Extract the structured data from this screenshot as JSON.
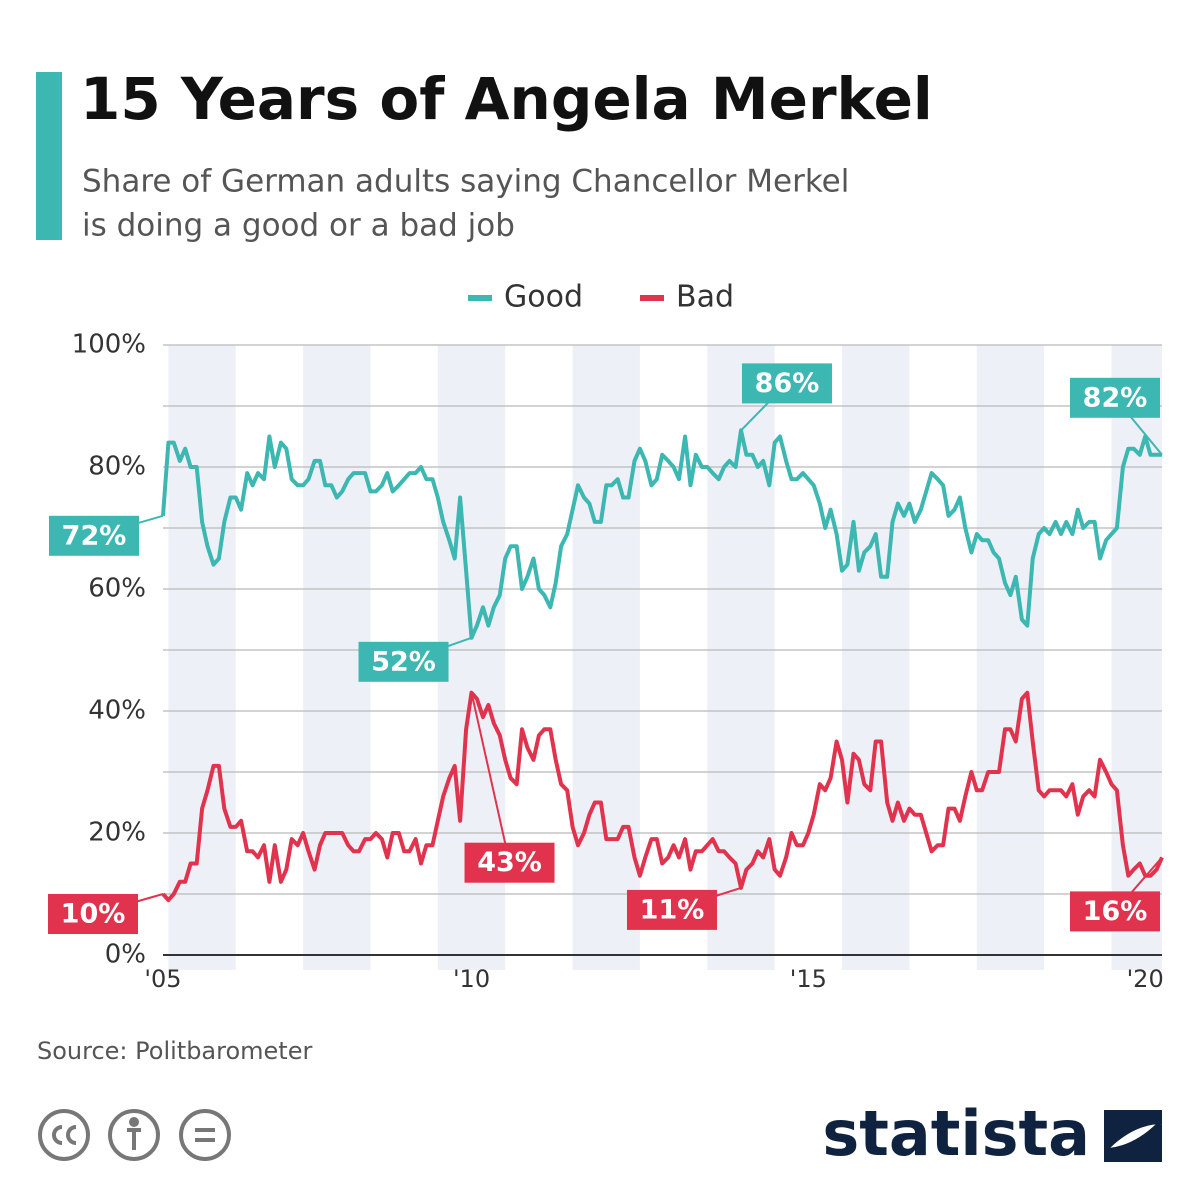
{
  "chart_data": {
    "type": "line",
    "title": "15 Years of Angela Merkel",
    "subtitle": [
      "Share of German adults saying Chancellor Merkel",
      "is doing a good or a bad job"
    ],
    "source": "Source: Politbarometer",
    "brand": "statista",
    "x": [
      2005.92,
      2006,
      2006.08,
      2006.17,
      2006.25,
      2006.33,
      2006.42,
      2006.5,
      2006.58,
      2006.67,
      2006.75,
      2006.83,
      2006.92,
      2007,
      2007.08,
      2007.17,
      2007.25,
      2007.33,
      2007.42,
      2007.5,
      2007.58,
      2007.67,
      2007.75,
      2007.83,
      2007.92,
      2008,
      2008.08,
      2008.17,
      2008.25,
      2008.33,
      2008.42,
      2008.5,
      2008.58,
      2008.67,
      2008.75,
      2008.83,
      2008.92,
      2009,
      2009.08,
      2009.17,
      2009.25,
      2009.33,
      2009.42,
      2009.5,
      2009.58,
      2009.67,
      2009.75,
      2009.83,
      2009.92,
      2010,
      2010.08,
      2010.17,
      2010.25,
      2010.33,
      2010.42,
      2010.5,
      2010.58,
      2010.67,
      2010.75,
      2010.83,
      2010.92,
      2011,
      2011.08,
      2011.17,
      2011.25,
      2011.33,
      2011.42,
      2011.5,
      2011.58,
      2011.67,
      2011.75,
      2011.83,
      2011.92,
      2012,
      2012.08,
      2012.17,
      2012.25,
      2012.33,
      2012.42,
      2012.5,
      2012.58,
      2012.67,
      2012.75,
      2012.83,
      2012.92,
      2013,
      2013.08,
      2013.17,
      2013.25,
      2013.33,
      2013.42,
      2013.5,
      2013.58,
      2013.67,
      2013.75,
      2013.83,
      2013.92,
      2014,
      2014.08,
      2014.17,
      2014.25,
      2014.33,
      2014.42,
      2014.5,
      2014.58,
      2014.67,
      2014.75,
      2014.83,
      2014.92,
      2015,
      2015.08,
      2015.17,
      2015.25,
      2015.33,
      2015.42,
      2015.5,
      2015.58,
      2015.67,
      2015.75,
      2015.83,
      2015.92,
      2016,
      2016.08,
      2016.17,
      2016.25,
      2016.33,
      2016.42,
      2016.5,
      2016.58,
      2016.67,
      2016.75,
      2016.83,
      2016.92,
      2017,
      2017.08,
      2017.17,
      2017.25,
      2017.33,
      2017.42,
      2017.5,
      2017.58,
      2017.67,
      2017.75,
      2017.83,
      2017.92,
      2018,
      2018.08,
      2018.17,
      2018.25,
      2018.33,
      2018.42,
      2018.5,
      2018.58,
      2018.67,
      2018.75,
      2018.83,
      2018.92,
      2019,
      2019.08,
      2019.17,
      2019.25,
      2019.33,
      2019.42,
      2019.5,
      2019.58,
      2019.67,
      2019.75,
      2019.83,
      2019.92,
      2020,
      2020.08,
      2020.17,
      2020.25,
      2020.33,
      2020.42,
      2020.5,
      2020.58,
      2020.67,
      2020.75
    ],
    "series": [
      {
        "name": "Good",
        "color": "#3cb7b1",
        "values": [
          72,
          84,
          84,
          81,
          83,
          80,
          80,
          71,
          67,
          64,
          65,
          71,
          75,
          75,
          73,
          79,
          77,
          79,
          78,
          85,
          80,
          84,
          83,
          78,
          77,
          77,
          78,
          81,
          81,
          77,
          77,
          75,
          76,
          78,
          79,
          79,
          79,
          76,
          76,
          77,
          79,
          76,
          77,
          78,
          79,
          79,
          80,
          78,
          78,
          75,
          71,
          68,
          65,
          75,
          63,
          52,
          54,
          57,
          54,
          57,
          59,
          65,
          67,
          67,
          60,
          62,
          65,
          60,
          59,
          57,
          61,
          67,
          69,
          73,
          77,
          75,
          74,
          71,
          71,
          77,
          77,
          78,
          75,
          75,
          81,
          83,
          81,
          77,
          78,
          82,
          81,
          80,
          78,
          85,
          77,
          82,
          80,
          80,
          79,
          78,
          80,
          81,
          80,
          86,
          82,
          82,
          80,
          81,
          77,
          84,
          85,
          81,
          78,
          78,
          79,
          78,
          77,
          74,
          70,
          73,
          69,
          63,
          64,
          71,
          63,
          66,
          67,
          69,
          62,
          62,
          71,
          74,
          72,
          74,
          71,
          73,
          76,
          79,
          78,
          77,
          72,
          73,
          75,
          70,
          66,
          69,
          68,
          68,
          66,
          65,
          61,
          59,
          62,
          55,
          54,
          65,
          69,
          70,
          69,
          71,
          69,
          71,
          69,
          73,
          70,
          71,
          71,
          65,
          68,
          69,
          70,
          80,
          83,
          83,
          82,
          85,
          82,
          82,
          82
        ],
        "value_labels": [
          "72%",
          null,
          null,
          null,
          null,
          null,
          null,
          null,
          null,
          null,
          null,
          null,
          null,
          null,
          null,
          null,
          null,
          null,
          null,
          null,
          null,
          null,
          null,
          null,
          null,
          null,
          null,
          null,
          null,
          null,
          null,
          null,
          null,
          null,
          null,
          null,
          null,
          null,
          null,
          null,
          null,
          null,
          null,
          null,
          null,
          null,
          null,
          null,
          null,
          null,
          null,
          null,
          null,
          null,
          null,
          "52%",
          null,
          null,
          null,
          null,
          null,
          null,
          null,
          null,
          null,
          null,
          null,
          null,
          null,
          null,
          null,
          null,
          null,
          null,
          null,
          null,
          null,
          null,
          null,
          null,
          null,
          null,
          null,
          null,
          null,
          null,
          null,
          null,
          null,
          null,
          null,
          null,
          null,
          null,
          null,
          null,
          null,
          null,
          null,
          null,
          null,
          null,
          null,
          "86%",
          null,
          null,
          null,
          null,
          null,
          null,
          null,
          null,
          null,
          null,
          null,
          null,
          null,
          null,
          null,
          null,
          null,
          null,
          null,
          null,
          null,
          null,
          null,
          null,
          null,
          null,
          null,
          null,
          null,
          null,
          null,
          null,
          null,
          null,
          null,
          null,
          null,
          null,
          null,
          null,
          null,
          null,
          null,
          null,
          null,
          null,
          null,
          null,
          null,
          null,
          null,
          null,
          null,
          null,
          null,
          null,
          null,
          null,
          null,
          null,
          null,
          null,
          null,
          null,
          null,
          null,
          null,
          null,
          null,
          null,
          null,
          null,
          null,
          null,
          "82%"
        ]
      },
      {
        "name": "Bad",
        "color": "#e1334d",
        "values": [
          10,
          9,
          10,
          12,
          12,
          15,
          15,
          24,
          27,
          31,
          31,
          24,
          21,
          21,
          22,
          17,
          17,
          16,
          18,
          12,
          18,
          12,
          14,
          19,
          18,
          20,
          17,
          14,
          18,
          20,
          20,
          20,
          20,
          18,
          17,
          17,
          19,
          19,
          20,
          19,
          16,
          20,
          20,
          17,
          17,
          19,
          15,
          18,
          18,
          22,
          26,
          29,
          31,
          22,
          37,
          43,
          42,
          39,
          41,
          38,
          36,
          32,
          29,
          28,
          37,
          34,
          32,
          36,
          37,
          37,
          32,
          28,
          27,
          21,
          18,
          20,
          23,
          25,
          25,
          19,
          19,
          19,
          21,
          21,
          16,
          13,
          16,
          19,
          19,
          15,
          16,
          18,
          16,
          19,
          14,
          17,
          17,
          18,
          19,
          17,
          17,
          16,
          15,
          11,
          14,
          15,
          17,
          16,
          19,
          14,
          13,
          16,
          20,
          18,
          18,
          20,
          23,
          28,
          27,
          29,
          35,
          32,
          25,
          33,
          32,
          28,
          27,
          35,
          35,
          25,
          22,
          25,
          22,
          24,
          23,
          23,
          20,
          17,
          18,
          18,
          24,
          24,
          22,
          26,
          30,
          27,
          27,
          30,
          30,
          30,
          37,
          37,
          35,
          42,
          43,
          35,
          27,
          26,
          27,
          27,
          27,
          26,
          28,
          23,
          26,
          27,
          26,
          32,
          30,
          28,
          27,
          18,
          13,
          14,
          15,
          13,
          13,
          14,
          16
        ],
        "value_labels": [
          "10%",
          null,
          null,
          null,
          null,
          null,
          null,
          null,
          null,
          null,
          null,
          null,
          null,
          null,
          null,
          null,
          null,
          null,
          null,
          null,
          null,
          null,
          null,
          null,
          null,
          null,
          null,
          null,
          null,
          null,
          null,
          null,
          null,
          null,
          null,
          null,
          null,
          null,
          null,
          null,
          null,
          null,
          null,
          null,
          null,
          null,
          null,
          null,
          null,
          null,
          null,
          null,
          null,
          null,
          null,
          "43%",
          null,
          null,
          null,
          null,
          null,
          null,
          null,
          null,
          null,
          null,
          null,
          null,
          null,
          null,
          null,
          null,
          null,
          null,
          null,
          null,
          null,
          null,
          null,
          null,
          null,
          null,
          null,
          null,
          null,
          null,
          null,
          null,
          null,
          null,
          null,
          null,
          null,
          null,
          null,
          null,
          null,
          null,
          null,
          null,
          null,
          null,
          null,
          "11%",
          null,
          null,
          null,
          null,
          null,
          null,
          null,
          null,
          null,
          null,
          null,
          null,
          null,
          null,
          null,
          null,
          null,
          null,
          null,
          null,
          null,
          null,
          null,
          null,
          null,
          null,
          null,
          null,
          null,
          null,
          null,
          null,
          null,
          null,
          null,
          null,
          null,
          null,
          null,
          null,
          null,
          null,
          null,
          null,
          null,
          null,
          null,
          null,
          null,
          null,
          null,
          null,
          null,
          null,
          null,
          null,
          null,
          null,
          null,
          null,
          null,
          null,
          null,
          null,
          null,
          null,
          null,
          null,
          null,
          null,
          null,
          null,
          null,
          null,
          "16%"
        ]
      }
    ],
    "xlim": [
      2005.92,
      2020.75
    ],
    "xticks": [
      {
        "value": 2005.92,
        "label": "'05"
      },
      {
        "value": 2010.5,
        "label": "'10"
      },
      {
        "value": 2015.5,
        "label": "'15"
      },
      {
        "value": 2020.5,
        "label": "'20"
      }
    ],
    "ylim": [
      0,
      100
    ],
    "yticks": [
      {
        "value": 0,
        "label": "0%"
      },
      {
        "value": 20,
        "label": "20%"
      },
      {
        "value": 40,
        "label": "40%"
      },
      {
        "value": 60,
        "label": "60%"
      },
      {
        "value": 80,
        "label": "80%"
      },
      {
        "value": 100,
        "label": "100%"
      }
    ],
    "yminor": [
      10,
      30,
      50,
      70,
      90
    ],
    "grid": true,
    "legend": "top"
  }
}
